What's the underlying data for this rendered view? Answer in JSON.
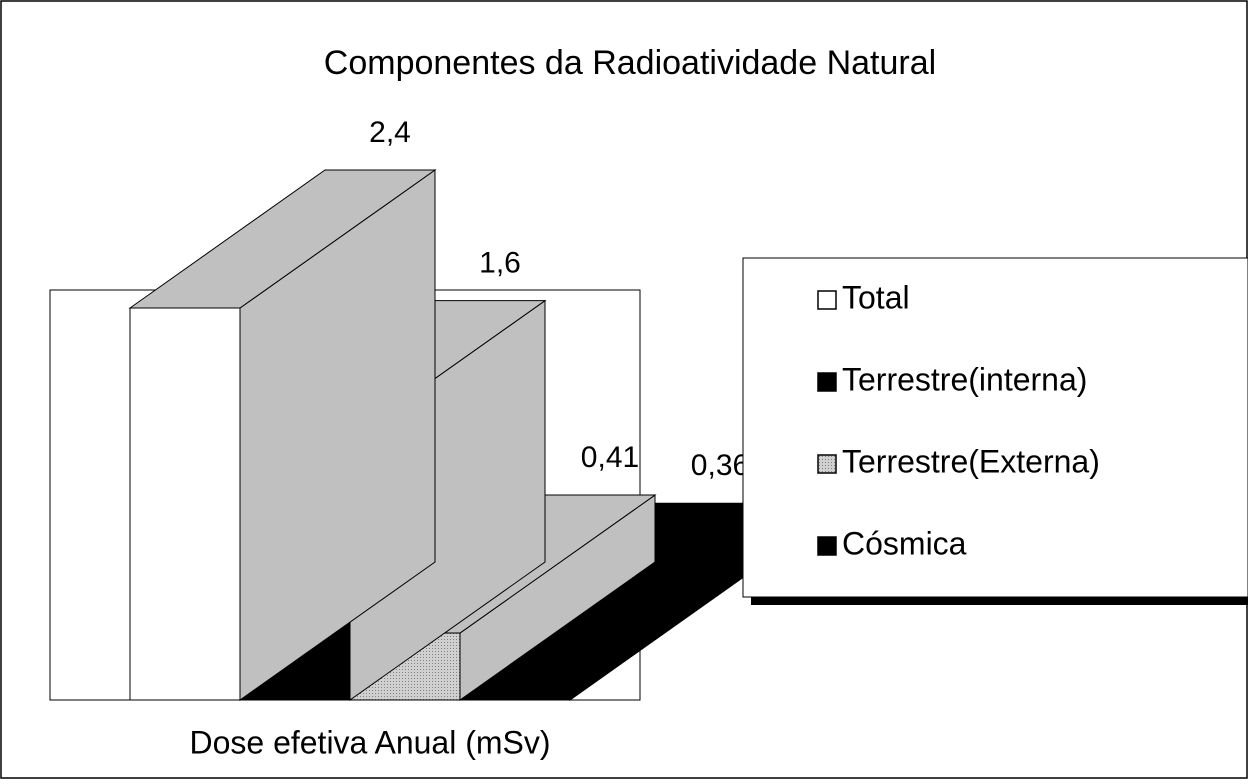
{
  "chart_data": {
    "type": "bar3d",
    "title": "Componentes da Radioatividade Natural",
    "x_label": "Dose efetiva Anual (mSv)",
    "series": [
      {
        "name": "Total",
        "color": "#ffffff",
        "side_color": "#c0c0c0",
        "values": [
          2.4
        ],
        "value_labels": [
          "2,4"
        ]
      },
      {
        "name": "Terrestre(interna)",
        "color": "#000000",
        "side_color": "#c0c0c0",
        "values": [
          1.6
        ],
        "value_labels": [
          "1,6"
        ]
      },
      {
        "name": "Terrestre(Externa)",
        "color": "#b8b8b8",
        "side_color": "#c0c0c0",
        "values": [
          0.41
        ],
        "value_labels": [
          "0,41"
        ]
      },
      {
        "name": "Cósmica",
        "color": "#000000",
        "side_color": "#000000",
        "values": [
          0.36
        ],
        "value_labels": [
          "0,36"
        ]
      }
    ]
  }
}
